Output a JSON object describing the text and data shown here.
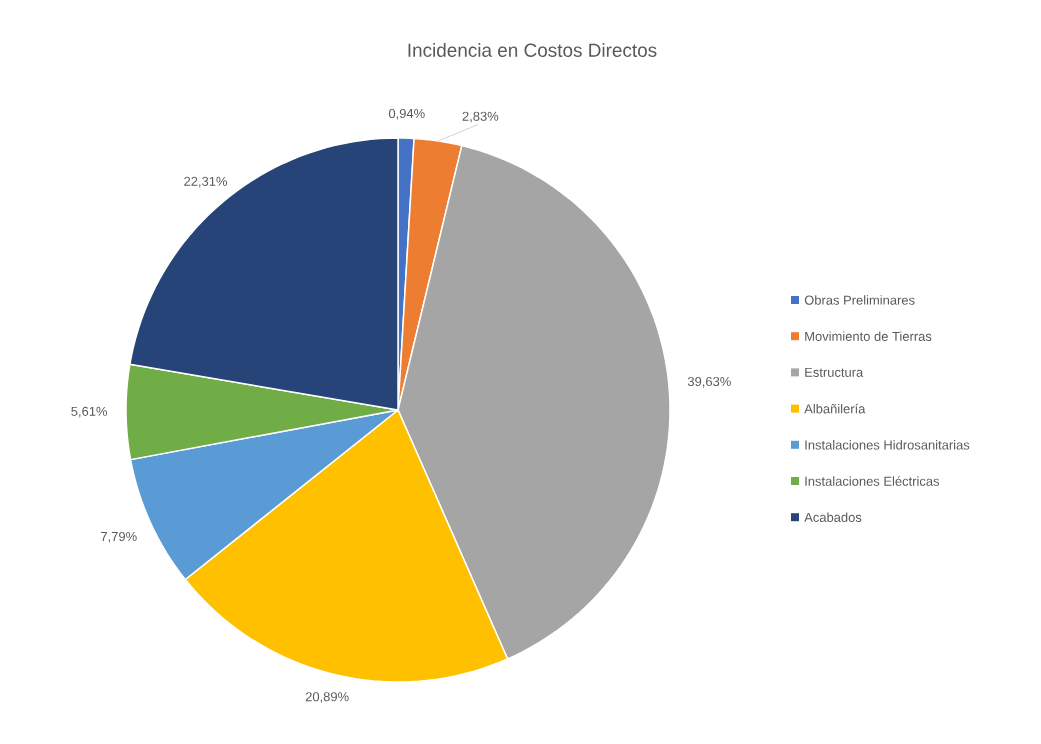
{
  "chart_data": {
    "type": "pie",
    "title": "Incidencia en Costos Directos",
    "categories": [
      "Obras Preliminares",
      "Movimiento de Tierras",
      "Estructura",
      "Albañilería",
      "Instalaciones Hidrosanitarias",
      "Instalaciones Eléctricas",
      "Acabados"
    ],
    "values": [
      0.94,
      2.83,
      39.63,
      20.89,
      7.79,
      5.61,
      22.31
    ],
    "value_labels": [
      "0,94%",
      "2,83%",
      "39,63%",
      "20,89%",
      "7,79%",
      "5,61%",
      "22,31%"
    ],
    "colors": [
      "#4472c4",
      "#ed7d31",
      "#a5a5a5",
      "#ffc000",
      "#5b9bd5",
      "#70ad47",
      "#264478"
    ],
    "legend": "right"
  }
}
